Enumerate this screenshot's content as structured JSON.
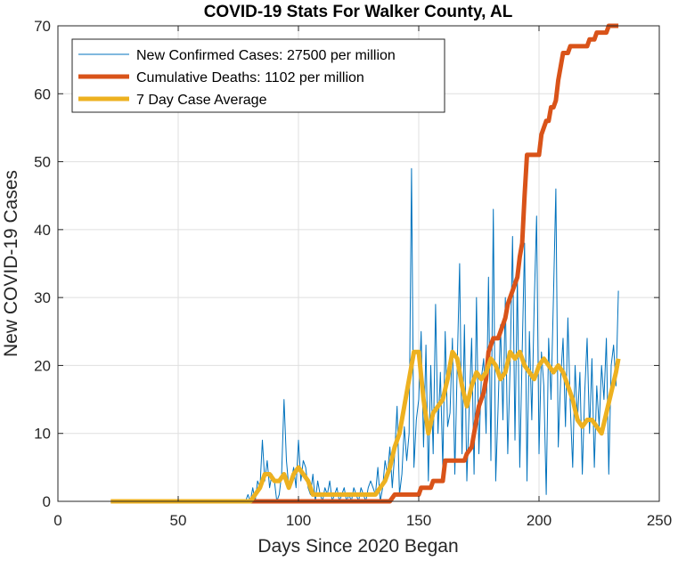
{
  "chart_data": {
    "type": "line",
    "title": "COVID-19 Stats For Walker County, AL",
    "xlabel": "Days Since 2020 Began",
    "ylabel": "New COVID-19 Cases",
    "xlim": [
      0,
      250
    ],
    "ylim": [
      0,
      70
    ],
    "xticks": [
      0,
      50,
      100,
      150,
      200,
      250
    ],
    "yticks": [
      0,
      10,
      20,
      30,
      40,
      50,
      60,
      70
    ],
    "grid": true,
    "legend_position": "top-left",
    "series": [
      {
        "name": "New Confirmed Cases: 27500 per million",
        "color": "#0072BD",
        "line_width": "thin",
        "x": [
          22,
          30,
          40,
          50,
          60,
          70,
          78,
          79,
          80,
          81,
          82,
          83,
          84,
          85,
          86,
          87,
          88,
          89,
          90,
          91,
          92,
          93,
          94,
          95,
          96,
          97,
          98,
          99,
          100,
          101,
          102,
          103,
          104,
          105,
          106,
          107,
          108,
          109,
          110,
          111,
          112,
          113,
          114,
          115,
          116,
          117,
          118,
          119,
          120,
          121,
          122,
          123,
          124,
          125,
          126,
          127,
          128,
          129,
          130,
          131,
          132,
          133,
          134,
          135,
          136,
          137,
          138,
          139,
          140,
          141,
          142,
          143,
          144,
          145,
          146,
          147,
          148,
          149,
          150,
          151,
          152,
          153,
          154,
          155,
          156,
          157,
          158,
          159,
          160,
          161,
          162,
          163,
          164,
          165,
          166,
          167,
          168,
          169,
          170,
          171,
          172,
          173,
          174,
          175,
          176,
          177,
          178,
          179,
          180,
          181,
          182,
          183,
          184,
          185,
          186,
          187,
          188,
          189,
          190,
          191,
          192,
          193,
          194,
          195,
          196,
          197,
          198,
          199,
          200,
          201,
          202,
          203,
          204,
          205,
          206,
          207,
          208,
          209,
          210,
          211,
          212,
          213,
          214,
          215,
          216,
          217,
          218,
          219,
          220,
          221,
          222,
          223,
          224,
          225,
          226,
          227,
          228,
          229,
          230,
          231,
          232,
          233
        ],
        "y": [
          0,
          0,
          0,
          0,
          0,
          0,
          0,
          1,
          0,
          2,
          0,
          3,
          2,
          9,
          3,
          6,
          2,
          4,
          3,
          0,
          1,
          4,
          15,
          6,
          2,
          3,
          5,
          2,
          9,
          3,
          6,
          5,
          2,
          1,
          4,
          0,
          3,
          1,
          0,
          2,
          1,
          3,
          0,
          1,
          2,
          0,
          1,
          2,
          0,
          1,
          0,
          2,
          1,
          0,
          2,
          1,
          0,
          2,
          3,
          2,
          1,
          5,
          0,
          2,
          6,
          4,
          8,
          2,
          7,
          14,
          1,
          4,
          11,
          6,
          10,
          49,
          5,
          12,
          15,
          25,
          8,
          23,
          3,
          20,
          7,
          29,
          10,
          19,
          5,
          25,
          11,
          13,
          24,
          4,
          20,
          35,
          7,
          26,
          3,
          14,
          24,
          4,
          30,
          7,
          18,
          21,
          10,
          33,
          6,
          43,
          3,
          14,
          26,
          12,
          30,
          7,
          20,
          39,
          9,
          33,
          5,
          22,
          38,
          3,
          25,
          12,
          29,
          42,
          7,
          22,
          17,
          1,
          24,
          15,
          30,
          46,
          8,
          18,
          24,
          11,
          27,
          14,
          5,
          20,
          12,
          19,
          4,
          16,
          24,
          10,
          21,
          5,
          17,
          11,
          20,
          15,
          24,
          4,
          20,
          23,
          17,
          31
        ]
      },
      {
        "name": "Cumulative Deaths: 1102 per million",
        "color": "#D95319",
        "line_width": "thick",
        "x": [
          22,
          138,
          140,
          150,
          151,
          155,
          156,
          160,
          161,
          169,
          170,
          172,
          173,
          174,
          175,
          176,
          177,
          178,
          179,
          180,
          181,
          182,
          183,
          184,
          185,
          186,
          187,
          188,
          189,
          190,
          191,
          192,
          193,
          194,
          195,
          196,
          197,
          198,
          199,
          200,
          201,
          202,
          203,
          204,
          205,
          206,
          207,
          208,
          209,
          210,
          211,
          212,
          213,
          214,
          215,
          216,
          217,
          218,
          219,
          220,
          221,
          222,
          223,
          224,
          225,
          226,
          227,
          228,
          229,
          230,
          231,
          232,
          233
        ],
        "y": [
          0,
          0,
          1,
          1,
          2,
          2,
          3,
          3,
          6,
          6,
          7,
          8,
          10,
          12,
          14,
          15,
          16,
          18,
          22,
          23,
          24,
          24,
          24,
          25,
          26,
          27,
          29,
          30,
          31,
          32,
          33,
          36,
          38,
          45,
          51,
          51,
          51,
          51,
          51,
          51,
          54,
          55,
          56,
          56,
          58,
          58,
          59,
          62,
          64,
          66,
          66,
          66,
          67,
          67,
          67,
          67,
          67,
          67,
          67,
          67,
          68,
          68,
          68,
          69,
          69,
          69,
          69,
          69,
          70,
          70,
          70,
          70,
          70
        ]
      },
      {
        "name": "7 Day Case Average",
        "color": "#EDB120",
        "line_width": "thick",
        "x": [
          22,
          80,
          82,
          84,
          86,
          88,
          90,
          92,
          94,
          96,
          98,
          100,
          102,
          104,
          106,
          108,
          110,
          112,
          114,
          116,
          118,
          120,
          122,
          124,
          126,
          128,
          130,
          132,
          134,
          136,
          138,
          140,
          142,
          144,
          146,
          148,
          150,
          152,
          154,
          156,
          158,
          160,
          162,
          164,
          166,
          168,
          170,
          172,
          174,
          176,
          178,
          180,
          182,
          184,
          186,
          188,
          190,
          192,
          194,
          196,
          198,
          200,
          202,
          204,
          206,
          208,
          210,
          212,
          214,
          216,
          218,
          220,
          222,
          224,
          226,
          228,
          230,
          232,
          233
        ],
        "y": [
          0,
          0,
          1,
          2,
          4,
          4,
          3,
          3,
          4,
          2,
          4,
          5,
          4,
          3,
          1,
          1,
          1,
          1,
          1,
          1,
          1,
          1,
          1,
          1,
          1,
          1,
          1,
          1,
          2,
          3,
          5,
          8,
          10,
          14,
          18,
          22,
          22,
          15,
          10,
          13,
          14,
          15,
          18,
          22,
          21,
          17,
          14,
          17,
          19,
          18,
          19,
          21,
          20,
          18,
          19,
          22,
          21,
          22,
          20,
          19,
          18,
          20,
          21,
          20,
          19,
          20,
          19,
          17,
          15,
          12,
          11,
          12,
          12,
          11,
          10,
          13,
          16,
          19,
          21
        ]
      }
    ]
  }
}
